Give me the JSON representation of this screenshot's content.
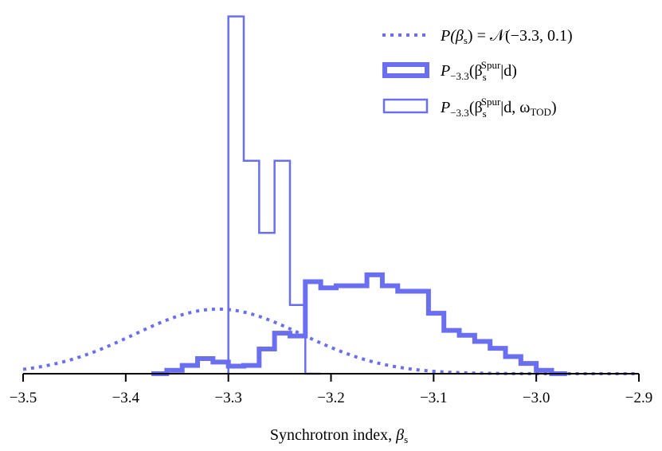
{
  "chart_data": {
    "type": "histogram",
    "xlabel": "Synchrotron index, ",
    "xlabel_symbol": "β",
    "xlabel_sub": "s",
    "xlim": [
      -3.5,
      -2.9
    ],
    "ylim": [
      0,
      5.3
    ],
    "xticks": [
      -3.5,
      -3.4,
      -3.3,
      -3.2,
      -3.1,
      -3.0,
      -2.9
    ],
    "xtick_labels": [
      "−3.5",
      "−3.4",
      "−3.3",
      "−3.2",
      "−3.1",
      "−3.0",
      "−2.9"
    ],
    "legend_position": "top-right",
    "color": "#6a6ff0",
    "prior": {
      "name": "P(βs) = N(−3.3, 0.1)",
      "legend_label": {
        "main": "P(β",
        "sub": "s",
        "rest": ") = 𝒩(−3.3, 0.1)"
      },
      "style": "dotted",
      "mean": -3.31,
      "sigma": 0.082,
      "peak": 0.94
    },
    "series": [
      {
        "name": "P−3.3(βsSpur|d)",
        "legend_label": {
          "P": "P",
          "Psub": "−3.3",
          "beta": "(β",
          "bsub": "s",
          "bsup": "Spur",
          "rest": "|d)"
        },
        "style": "thick-step",
        "bin_width": 0.015,
        "bin_start": -3.375,
        "values": [
          0.0,
          0.05,
          0.12,
          0.22,
          0.17,
          0.11,
          0.12,
          0.36,
          0.59,
          0.55,
          1.34,
          1.25,
          1.28,
          1.28,
          1.44,
          1.28,
          1.2,
          1.2,
          0.88,
          0.63,
          0.56,
          0.47,
          0.37,
          0.25,
          0.15,
          0.05,
          0.0
        ]
      },
      {
        "name": "P−3.3(βsSpur|d, ωTOD)",
        "legend_label": {
          "P": "P",
          "Psub": "−3.3",
          "beta": "(β",
          "bsub": "s",
          "bsup": "Spur",
          "rest": "|d, ω",
          "osub": "TOD",
          "close": ")"
        },
        "style": "thin-step",
        "bin_width": 0.015,
        "bin_start": -3.3,
        "values": [
          5.2,
          3.1,
          2.05,
          3.1,
          1.0,
          0.0
        ]
      }
    ]
  }
}
